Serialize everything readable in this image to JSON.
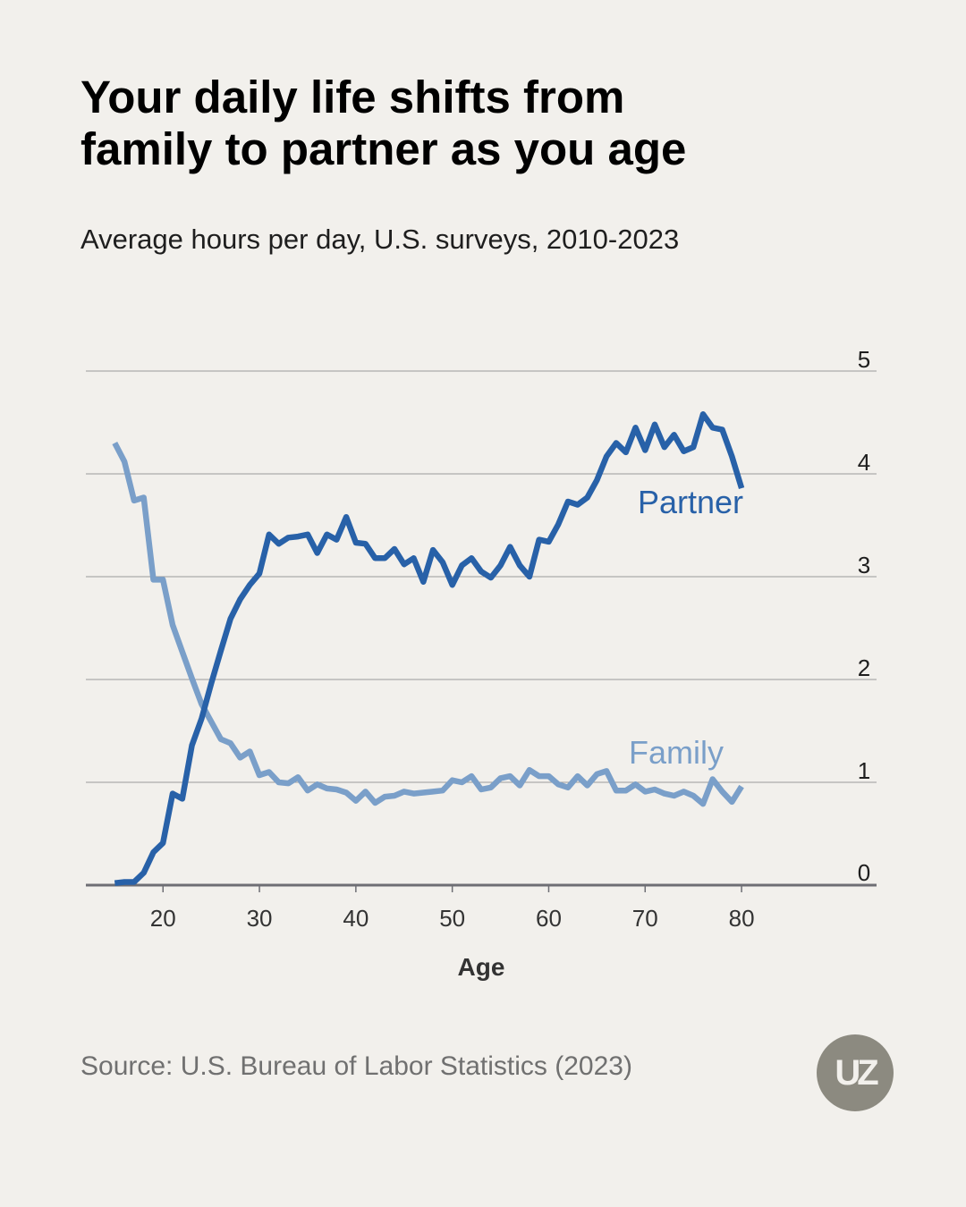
{
  "header": {
    "title_line1": "Your daily life shifts from",
    "title_line2": "family to partner as you age",
    "subtitle": "Average hours per day, U.S. surveys, 2010-2023"
  },
  "footer": {
    "source": "Source: U.S. Bureau of Labor Statistics (2023)",
    "logo_text": "UZ"
  },
  "colors": {
    "background": "#f2f0ec",
    "partner": "#2861a8",
    "family": "#7a9fc9",
    "grid": "#9a9a9a",
    "axis": "#6e6e74"
  },
  "chart_data": {
    "type": "line",
    "title": "Your daily life shifts from family to partner as you age",
    "xlabel": "Age",
    "ylabel": "",
    "xlim": [
      12,
      94
    ],
    "ylim": [
      0,
      5
    ],
    "xticks": [
      20,
      30,
      40,
      50,
      60,
      70,
      80
    ],
    "yticks": [
      0,
      1,
      2,
      3,
      4,
      5
    ],
    "grid": true,
    "yaxis_position": "right",
    "series": [
      {
        "name": "Partner",
        "label": "Partner",
        "x": [
          15,
          16,
          17,
          18,
          19,
          20,
          21,
          22,
          23,
          24,
          25,
          26,
          27,
          28,
          29,
          30,
          31,
          32,
          33,
          34,
          35,
          36,
          37,
          38,
          39,
          40,
          41,
          42,
          43,
          44,
          45,
          46,
          47,
          48,
          49,
          50,
          51,
          52,
          53,
          54,
          55,
          56,
          57,
          58,
          59,
          60,
          61,
          62,
          63,
          64,
          65,
          66,
          67,
          68,
          69,
          70,
          71,
          72,
          73,
          74,
          75,
          76,
          77,
          78,
          79,
          80
        ],
        "values": [
          0.02,
          0.03,
          0.03,
          0.12,
          0.32,
          0.41,
          0.89,
          0.84,
          1.36,
          1.62,
          1.96,
          2.28,
          2.59,
          2.78,
          2.92,
          3.03,
          3.41,
          3.32,
          3.38,
          3.39,
          3.41,
          3.23,
          3.41,
          3.36,
          3.58,
          3.33,
          3.32,
          3.18,
          3.18,
          3.27,
          3.12,
          3.18,
          2.95,
          3.26,
          3.14,
          2.92,
          3.11,
          3.18,
          3.05,
          2.99,
          3.11,
          3.29,
          3.11,
          3.0,
          3.36,
          3.34,
          3.51,
          3.73,
          3.7,
          3.77,
          3.94,
          4.17,
          4.3,
          4.21,
          4.45,
          4.23,
          4.48,
          4.26,
          4.38,
          4.22,
          4.26,
          4.58,
          4.45,
          4.43,
          4.17,
          3.86
        ]
      },
      {
        "name": "Family",
        "label": "Family",
        "x": [
          15,
          16,
          17,
          18,
          19,
          20,
          21,
          22,
          23,
          24,
          25,
          26,
          27,
          28,
          29,
          30,
          31,
          32,
          33,
          34,
          35,
          36,
          37,
          38,
          39,
          40,
          41,
          42,
          43,
          44,
          45,
          46,
          47,
          48,
          49,
          50,
          51,
          52,
          53,
          54,
          55,
          56,
          57,
          58,
          59,
          60,
          61,
          62,
          63,
          64,
          65,
          66,
          67,
          68,
          69,
          70,
          71,
          72,
          73,
          74,
          75,
          76,
          77,
          78,
          79,
          80
        ],
        "values": [
          4.3,
          4.12,
          3.74,
          3.77,
          2.97,
          2.97,
          2.53,
          2.27,
          2.01,
          1.76,
          1.59,
          1.42,
          1.38,
          1.24,
          1.3,
          1.07,
          1.1,
          1.0,
          0.99,
          1.05,
          0.92,
          0.98,
          0.94,
          0.93,
          0.9,
          0.82,
          0.91,
          0.8,
          0.86,
          0.87,
          0.91,
          0.89,
          0.9,
          0.91,
          0.92,
          1.02,
          1.0,
          1.06,
          0.93,
          0.95,
          1.04,
          1.06,
          0.97,
          1.12,
          1.06,
          1.06,
          0.98,
          0.95,
          1.06,
          0.97,
          1.08,
          1.11,
          0.92,
          0.92,
          0.98,
          0.91,
          0.93,
          0.89,
          0.87,
          0.91,
          0.87,
          0.79,
          1.03,
          0.91,
          0.81,
          0.96
        ]
      }
    ]
  }
}
